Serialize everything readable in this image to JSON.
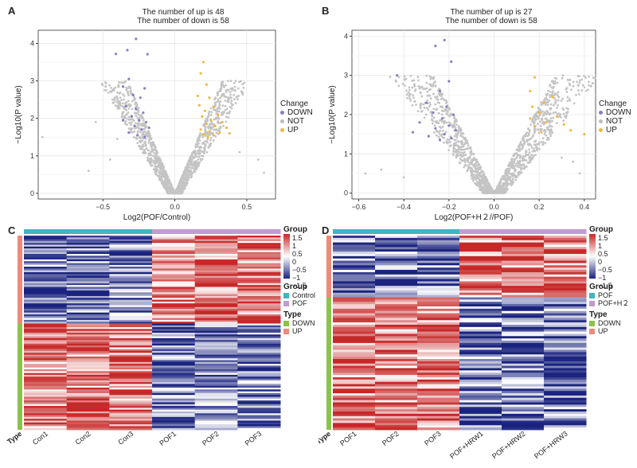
{
  "panels": {
    "A": {
      "letter": "A",
      "title1": "The number of up is 48",
      "title2": "The number of down is 58",
      "xlabel": "Log2(POF/Control)",
      "ylabel": "−Log10(P value)"
    },
    "B": {
      "letter": "B",
      "title1": "The number of up is 27",
      "title2": "The number of down is 58",
      "xlabel": "Log2(POF+H２//POF)",
      "ylabel": "−Log10(P value)"
    },
    "C": {
      "letter": "C"
    },
    "D": {
      "letter": "D"
    }
  },
  "volcano_legend": {
    "title": "Change",
    "items": [
      {
        "label": "DOWN",
        "color": "#8e7cc3"
      },
      {
        "label": "NOT",
        "color": "#bdbdbd"
      },
      {
        "label": "UP",
        "color": "#f0b842"
      }
    ]
  },
  "heat_legend": {
    "group_title": "Group",
    "scale_ticks": [
      "1.5",
      "1",
      "0.5",
      "0",
      "−0.5",
      "−1",
      "−1.5"
    ],
    "group_c": [
      {
        "label": "Control",
        "color": "#3fb6c0"
      },
      {
        "label": "POF",
        "color": "#c39bd3"
      }
    ],
    "group_d": [
      {
        "label": "POF",
        "color": "#3fb6c0"
      },
      {
        "label": "POF+H２",
        "color": "#c39bd3"
      }
    ],
    "type_title": "Type",
    "type_items": [
      {
        "label": "DOWN",
        "color": "#8bc34a"
      },
      {
        "label": "UP",
        "color": "#ef8a7a"
      }
    ]
  },
  "chart_data": [
    {
      "type": "scatter",
      "title": "The number of up is 48 / The number of down is 58",
      "xlabel": "Log2(POF/Control)",
      "ylabel": "−Log10(P value)",
      "xlim": [
        -0.95,
        0.7
      ],
      "ylim": [
        -0.15,
        4.35
      ],
      "xticks": [
        -0.5,
        0.0,
        0.5
      ],
      "xtick_labels": [
        "−0.5",
        "0.0",
        "0.5"
      ],
      "yticks": [
        0,
        1,
        2,
        3,
        4
      ],
      "grid": true,
      "legend": "right",
      "up_count": 48,
      "down_count": 58,
      "spread": 0.11,
      "highlight": [
        {
          "x": -0.27,
          "y": 4.12,
          "g": "DOWN"
        },
        {
          "x": -0.33,
          "y": 3.82,
          "g": "DOWN"
        },
        {
          "x": -0.41,
          "y": 3.72,
          "g": "DOWN"
        },
        {
          "x": -0.19,
          "y": 3.71,
          "g": "DOWN"
        },
        {
          "x": -0.32,
          "y": 3.05,
          "g": "DOWN"
        },
        {
          "x": -0.36,
          "y": 2.85,
          "g": "DOWN"
        },
        {
          "x": -0.21,
          "y": 2.8,
          "g": "DOWN"
        },
        {
          "x": -0.29,
          "y": 2.62,
          "g": "DOWN"
        },
        {
          "x": -0.24,
          "y": 2.55,
          "g": "DOWN"
        },
        {
          "x": -0.34,
          "y": 2.32,
          "g": "DOWN"
        },
        {
          "x": -0.27,
          "y": 2.25,
          "g": "DOWN"
        },
        {
          "x": -0.22,
          "y": 2.15,
          "g": "DOWN"
        },
        {
          "x": -0.3,
          "y": 2.05,
          "g": "DOWN"
        },
        {
          "x": -0.25,
          "y": 1.95,
          "g": "DOWN"
        },
        {
          "x": -0.2,
          "y": 1.9,
          "g": "DOWN"
        },
        {
          "x": -0.28,
          "y": 1.8,
          "g": "DOWN"
        },
        {
          "x": -0.23,
          "y": 1.7,
          "g": "DOWN"
        },
        {
          "x": -0.32,
          "y": 1.62,
          "g": "DOWN"
        },
        {
          "x": -0.26,
          "y": 1.55,
          "g": "DOWN"
        },
        {
          "x": -0.21,
          "y": 1.5,
          "g": "DOWN"
        },
        {
          "x": -0.18,
          "y": 1.75,
          "g": "DOWN"
        },
        {
          "x": -0.36,
          "y": 1.95,
          "g": "DOWN"
        },
        {
          "x": 0.2,
          "y": 3.5,
          "g": "UP"
        },
        {
          "x": 0.18,
          "y": 3.2,
          "g": "UP"
        },
        {
          "x": 0.22,
          "y": 2.9,
          "g": "UP"
        },
        {
          "x": 0.24,
          "y": 2.55,
          "g": "UP"
        },
        {
          "x": 0.17,
          "y": 2.35,
          "g": "UP"
        },
        {
          "x": 0.27,
          "y": 2.3,
          "g": "UP"
        },
        {
          "x": 0.21,
          "y": 2.2,
          "g": "UP"
        },
        {
          "x": 0.3,
          "y": 2.1,
          "g": "UP"
        },
        {
          "x": 0.19,
          "y": 2.05,
          "g": "UP"
        },
        {
          "x": 0.25,
          "y": 1.95,
          "g": "UP"
        },
        {
          "x": 0.33,
          "y": 1.9,
          "g": "UP"
        },
        {
          "x": 0.22,
          "y": 1.85,
          "g": "UP"
        },
        {
          "x": 0.28,
          "y": 1.8,
          "g": "UP"
        },
        {
          "x": 0.36,
          "y": 1.75,
          "g": "UP"
        },
        {
          "x": 0.18,
          "y": 1.7,
          "g": "UP"
        },
        {
          "x": 0.24,
          "y": 1.65,
          "g": "UP"
        },
        {
          "x": 0.31,
          "y": 1.62,
          "g": "UP"
        },
        {
          "x": 0.2,
          "y": 1.58,
          "g": "UP"
        },
        {
          "x": 0.27,
          "y": 1.55,
          "g": "UP"
        },
        {
          "x": 0.38,
          "y": 1.6,
          "g": "UP"
        },
        {
          "x": 0.23,
          "y": 1.5,
          "g": "UP"
        },
        {
          "x": 0.16,
          "y": 2.6,
          "g": "UP"
        }
      ],
      "outliers": [
        {
          "x": -0.92,
          "y": 1.5
        },
        {
          "x": -0.55,
          "y": 1.9
        },
        {
          "x": -0.4,
          "y": 1.45
        },
        {
          "x": 0.58,
          "y": 0.9
        },
        {
          "x": 0.62,
          "y": 0.55
        },
        {
          "x": -0.6,
          "y": 0.6
        },
        {
          "x": 0.45,
          "y": 1.1
        },
        {
          "x": -0.45,
          "y": 0.9
        }
      ]
    },
    {
      "type": "scatter",
      "title": "The number of up is 27 / The number of down is 58",
      "xlabel": "Log2(POF+H２//POF)",
      "ylabel": "−Log10(P value)",
      "xlim": [
        -0.63,
        0.45
      ],
      "ylim": [
        -0.15,
        4.15
      ],
      "xticks": [
        -0.6,
        -0.4,
        -0.2,
        0.0,
        0.2,
        0.4
      ],
      "xtick_labels": [
        "−0.6",
        "−0.4",
        "−0.2",
        "0.0",
        "0.2",
        "0.4"
      ],
      "yticks": [
        0,
        1,
        2,
        3,
        4
      ],
      "grid": true,
      "legend": "right",
      "up_count": 27,
      "down_count": 58,
      "spread": 0.09,
      "highlight": [
        {
          "x": -0.26,
          "y": 3.75,
          "g": "DOWN"
        },
        {
          "x": -0.22,
          "y": 3.9,
          "g": "DOWN"
        },
        {
          "x": -0.43,
          "y": 3.0,
          "g": "DOWN"
        },
        {
          "x": -0.19,
          "y": 3.35,
          "g": "DOWN"
        },
        {
          "x": -0.2,
          "y": 2.85,
          "g": "DOWN"
        },
        {
          "x": -0.24,
          "y": 2.6,
          "g": "DOWN"
        },
        {
          "x": -0.3,
          "y": 2.3,
          "g": "DOWN"
        },
        {
          "x": -0.21,
          "y": 2.2,
          "g": "DOWN"
        },
        {
          "x": -0.27,
          "y": 2.05,
          "g": "DOWN"
        },
        {
          "x": -0.18,
          "y": 2.0,
          "g": "DOWN"
        },
        {
          "x": -0.23,
          "y": 1.9,
          "g": "DOWN"
        },
        {
          "x": -0.33,
          "y": 1.8,
          "g": "DOWN"
        },
        {
          "x": -0.2,
          "y": 1.72,
          "g": "DOWN"
        },
        {
          "x": -0.26,
          "y": 1.65,
          "g": "DOWN"
        },
        {
          "x": -0.17,
          "y": 1.6,
          "g": "DOWN"
        },
        {
          "x": -0.22,
          "y": 1.5,
          "g": "DOWN"
        },
        {
          "x": -0.29,
          "y": 1.45,
          "g": "DOWN"
        },
        {
          "x": -0.19,
          "y": 1.4,
          "g": "DOWN"
        },
        {
          "x": -0.24,
          "y": 1.35,
          "g": "DOWN"
        },
        {
          "x": -0.36,
          "y": 1.55,
          "g": "DOWN"
        },
        {
          "x": 0.18,
          "y": 2.95,
          "g": "UP"
        },
        {
          "x": 0.16,
          "y": 2.6,
          "g": "UP"
        },
        {
          "x": 0.26,
          "y": 2.45,
          "g": "UP"
        },
        {
          "x": 0.22,
          "y": 2.3,
          "g": "UP"
        },
        {
          "x": 0.17,
          "y": 2.2,
          "g": "UP"
        },
        {
          "x": 0.2,
          "y": 2.05,
          "g": "UP"
        },
        {
          "x": 0.28,
          "y": 1.95,
          "g": "UP"
        },
        {
          "x": 0.16,
          "y": 1.9,
          "g": "UP"
        },
        {
          "x": 0.23,
          "y": 1.8,
          "g": "UP"
        },
        {
          "x": 0.31,
          "y": 1.75,
          "g": "UP"
        },
        {
          "x": 0.18,
          "y": 1.7,
          "g": "UP"
        },
        {
          "x": 0.34,
          "y": 1.6,
          "g": "UP"
        },
        {
          "x": 0.4,
          "y": 1.5,
          "g": "UP"
        },
        {
          "x": 0.21,
          "y": 1.55,
          "g": "UP"
        }
      ],
      "outliers": [
        {
          "x": -0.57,
          "y": 0.5
        },
        {
          "x": -0.5,
          "y": 0.6
        },
        {
          "x": -0.4,
          "y": 0.4
        },
        {
          "x": 0.35,
          "y": 0.8
        },
        {
          "x": 0.38,
          "y": 0.5
        },
        {
          "x": 0.3,
          "y": 0.9
        }
      ]
    },
    {
      "type": "heatmap",
      "columns": [
        "Con1",
        "Con2",
        "Con3",
        "POF1",
        "POF2",
        "POF3"
      ],
      "group_colors": [
        "#3fb6c0",
        "#3fb6c0",
        "#3fb6c0",
        "#c39bd3",
        "#c39bd3",
        "#c39bd3"
      ],
      "type_label": "Type",
      "up_rows": 48,
      "down_rows": 58,
      "scale": [
        -1.5,
        1.5
      ],
      "seed": 11
    },
    {
      "type": "heatmap",
      "columns": [
        "POF1",
        "POF2",
        "POF3",
        "POF+HRW1",
        "POF+HRW2",
        "POF+HRW3"
      ],
      "group_colors": [
        "#3fb6c0",
        "#3fb6c0",
        "#3fb6c0",
        "#c39bd3",
        "#c39bd3",
        "#c39bd3"
      ],
      "type_label": "Type",
      "up_rows": 27,
      "down_rows": 58,
      "scale": [
        -1.5,
        1.5
      ],
      "seed": 29
    }
  ]
}
